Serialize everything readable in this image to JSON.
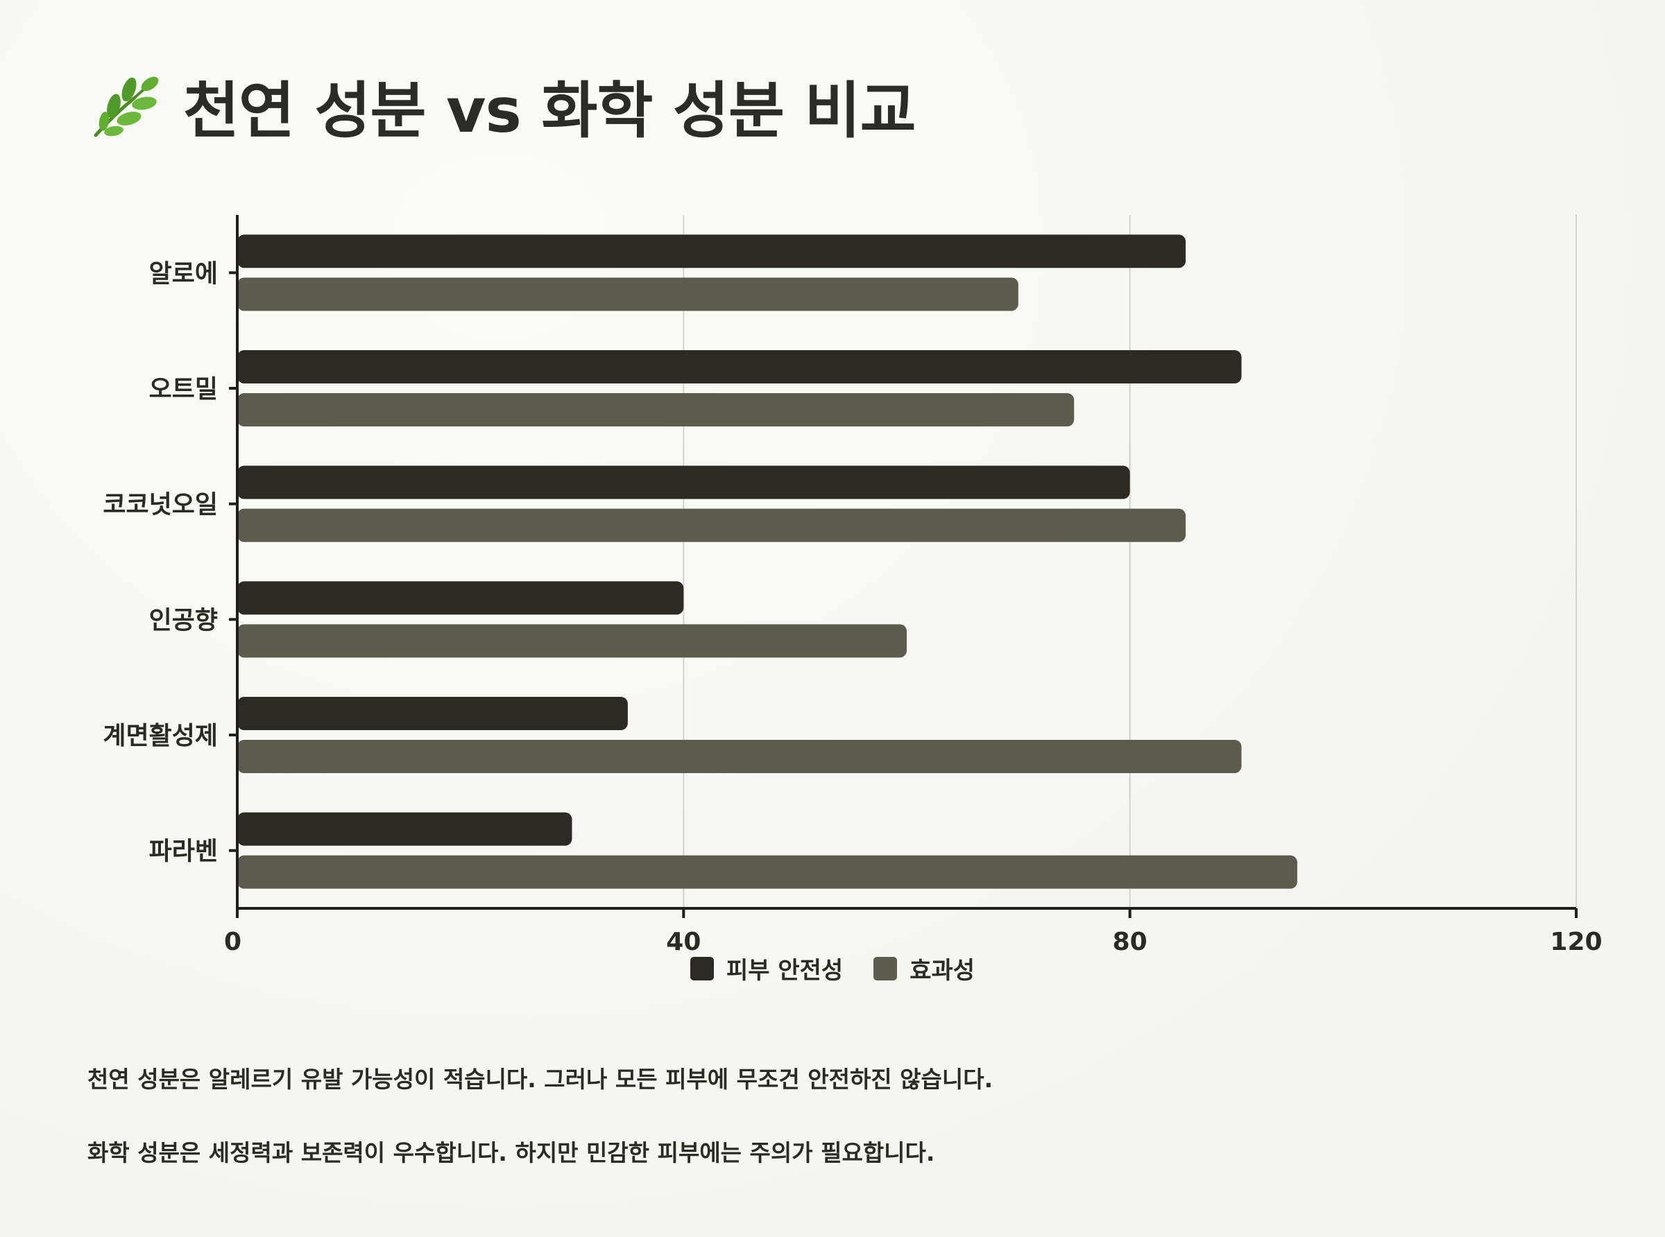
{
  "title": "천연 성분 vs 화학 성분 비교",
  "title_icon": "herb-leaf-icon",
  "colors": {
    "background": "#f7f7f3",
    "series_safety": "#2b2a23",
    "series_efficacy": "#5b5c4c",
    "axis": "#1f1f1c",
    "grid": "#d3d3cf",
    "leaf_green": "#4e9a2a"
  },
  "chart_data": {
    "type": "bar",
    "orientation": "horizontal",
    "categories": [
      "알로에",
      "오트밀",
      "코코넛오일",
      "인공향",
      "계면활성제",
      "파라벤"
    ],
    "series": [
      {
        "name": "피부 안전성",
        "values": [
          85,
          90,
          80,
          40,
          35,
          30
        ]
      },
      {
        "name": "효과성",
        "values": [
          70,
          75,
          85,
          60,
          90,
          95
        ]
      }
    ],
    "xlim": [
      0,
      120
    ],
    "xticks": [
      0,
      40,
      80,
      120
    ],
    "xlabel": "",
    "ylabel": "",
    "grid": "vertical",
    "legend_position": "bottom-center"
  },
  "legend": {
    "items": [
      {
        "label": "피부 안전성",
        "color": "#2b2a23"
      },
      {
        "label": "효과성",
        "color": "#5b5c4c"
      }
    ]
  },
  "notes": [
    "천연 성분은 알레르기 유발 가능성이 적습니다. 그러나 모든 피부에 무조건 안전하진 않습니다.",
    "화학 성분은 세정력과 보존력이 우수합니다. 하지만 민감한 피부에는 주의가 필요합니다."
  ]
}
